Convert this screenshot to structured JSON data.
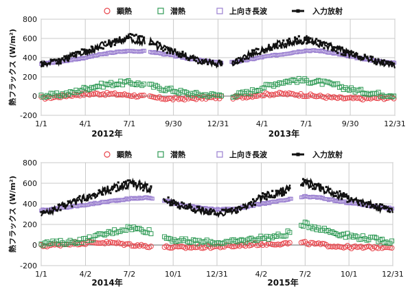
{
  "colors": {
    "sensible": "#e8434a",
    "latent": "#2f9a55",
    "longwave": "#9a7fd0",
    "radiation": "#111111",
    "grid": "#c9c9c9",
    "zero": "#9a9a9a"
  },
  "chart_data": [
    {
      "type": "scatter",
      "ylabel": "熱フラックス (W/m²)",
      "ylim": [
        -200,
        800
      ],
      "yticks": [
        "800",
        "600",
        "400",
        "200",
        "0",
        "-200"
      ],
      "grid": true,
      "legend_position": "top",
      "xlim": [
        0,
        730
      ],
      "x_ticks": [
        {
          "x": 0,
          "label": "1/1"
        },
        {
          "x": 91,
          "label": "4/1"
        },
        {
          "x": 182,
          "label": "7/1"
        },
        {
          "x": 273,
          "label": "9/30"
        },
        {
          "x": 365,
          "label": "12/31"
        },
        {
          "x": 456,
          "label": "4/1"
        },
        {
          "x": 547,
          "label": "7/1"
        },
        {
          "x": 638,
          "label": "9/30"
        },
        {
          "x": 730,
          "label": "12/31"
        }
      ],
      "year_labels": [
        {
          "x": 136,
          "label": "2012年"
        },
        {
          "x": 501,
          "label": "2013年"
        }
      ],
      "gaps": [
        [
          215,
          222
        ],
        [
          375,
          392
        ]
      ],
      "series": [
        {
          "name": "顕熱",
          "key": "sensible",
          "marker": "circle",
          "points": [
            [
              0,
              -20
            ],
            [
              30,
              -10
            ],
            [
              60,
              10
            ],
            [
              91,
              20
            ],
            [
              120,
              25
            ],
            [
              150,
              20
            ],
            [
              182,
              10
            ],
            [
              215,
              -5
            ],
            [
              240,
              -20
            ],
            [
              273,
              -30
            ],
            [
              300,
              -25
            ],
            [
              330,
              -20
            ],
            [
              365,
              -15
            ],
            [
              400,
              -15
            ],
            [
              430,
              0
            ],
            [
              456,
              15
            ],
            [
              490,
              25
            ],
            [
              520,
              20
            ],
            [
              547,
              10
            ],
            [
              580,
              -5
            ],
            [
              610,
              -20
            ],
            [
              638,
              -25
            ],
            [
              670,
              -25
            ],
            [
              700,
              -20
            ],
            [
              730,
              -15
            ]
          ]
        },
        {
          "name": "潜熱",
          "key": "latent",
          "marker": "square",
          "points": [
            [
              0,
              5
            ],
            [
              30,
              10
            ],
            [
              60,
              30
            ],
            [
              91,
              80
            ],
            [
              120,
              110
            ],
            [
              150,
              130
            ],
            [
              182,
              140
            ],
            [
              215,
              120
            ],
            [
              240,
              90
            ],
            [
              273,
              60
            ],
            [
              300,
              30
            ],
            [
              330,
              15
            ],
            [
              365,
              10
            ],
            [
              400,
              10
            ],
            [
              430,
              40
            ],
            [
              456,
              90
            ],
            [
              490,
              140
            ],
            [
              520,
              165
            ],
            [
              547,
              160
            ],
            [
              580,
              140
            ],
            [
              610,
              110
            ],
            [
              638,
              70
            ],
            [
              670,
              40
            ],
            [
              700,
              20
            ],
            [
              730,
              10
            ]
          ]
        },
        {
          "name": "上向き長波",
          "key": "longwave",
          "marker": "square",
          "points": [
            [
              0,
              340
            ],
            [
              30,
              350
            ],
            [
              60,
              375
            ],
            [
              91,
              400
            ],
            [
              120,
              430
            ],
            [
              150,
              455
            ],
            [
              182,
              470
            ],
            [
              215,
              465
            ],
            [
              240,
              450
            ],
            [
              273,
              420
            ],
            [
              300,
              395
            ],
            [
              330,
              370
            ],
            [
              365,
              350
            ],
            [
              400,
              355
            ],
            [
              430,
              380
            ],
            [
              456,
              405
            ],
            [
              490,
              430
            ],
            [
              520,
              455
            ],
            [
              547,
              475
            ],
            [
              580,
              470
            ],
            [
              610,
              440
            ],
            [
              638,
              410
            ],
            [
              670,
              385
            ],
            [
              700,
              360
            ],
            [
              730,
              345
            ]
          ]
        },
        {
          "name": "入力放射",
          "key": "radiation",
          "marker": "line",
          "points": [
            [
              0,
              360
            ],
            [
              30,
              390
            ],
            [
              60,
              440
            ],
            [
              91,
              500
            ],
            [
              120,
              560
            ],
            [
              150,
              610
            ],
            [
              182,
              650
            ],
            [
              215,
              620
            ],
            [
              240,
              570
            ],
            [
              273,
              500
            ],
            [
              300,
              450
            ],
            [
              330,
              400
            ],
            [
              365,
              370
            ],
            [
              400,
              380
            ],
            [
              430,
              470
            ],
            [
              456,
              520
            ],
            [
              490,
              580
            ],
            [
              520,
              610
            ],
            [
              547,
              640
            ],
            [
              580,
              580
            ],
            [
              610,
              530
            ],
            [
              638,
              480
            ],
            [
              670,
              430
            ],
            [
              700,
              380
            ],
            [
              730,
              350
            ]
          ]
        }
      ]
    },
    {
      "type": "scatter",
      "ylabel": "熱フラックス (W/m²)",
      "ylim": [
        -200,
        800
      ],
      "yticks": [
        "800",
        "600",
        "400",
        "200",
        "0",
        "-200"
      ],
      "grid": true,
      "legend_position": "top",
      "xlim": [
        0,
        730
      ],
      "x_ticks": [
        {
          "x": 0,
          "label": "1/1"
        },
        {
          "x": 92,
          "label": "4/2"
        },
        {
          "x": 183,
          "label": "7/2"
        },
        {
          "x": 274,
          "label": "10/1"
        },
        {
          "x": 365,
          "label": "12/31"
        },
        {
          "x": 457,
          "label": "4/2"
        },
        {
          "x": 548,
          "label": "7/2"
        },
        {
          "x": 639,
          "label": "10/1"
        },
        {
          "x": 730,
          "label": "12/31"
        }
      ],
      "year_labels": [
        {
          "x": 137,
          "label": "2014年"
        },
        {
          "x": 502,
          "label": "2015年"
        }
      ],
      "gaps": [
        [
          232,
          252
        ],
        [
          520,
          538
        ]
      ],
      "series": [
        {
          "name": "顕熱",
          "key": "sensible",
          "marker": "circle",
          "points": [
            [
              0,
              -10
            ],
            [
              30,
              0
            ],
            [
              60,
              15
            ],
            [
              92,
              20
            ],
            [
              120,
              25
            ],
            [
              150,
              20
            ],
            [
              183,
              5
            ],
            [
              220,
              -10
            ],
            [
              260,
              -20
            ],
            [
              290,
              -25
            ],
            [
              330,
              -20
            ],
            [
              365,
              -15
            ],
            [
              400,
              -10
            ],
            [
              430,
              5
            ],
            [
              457,
              10
            ],
            [
              500,
              15
            ],
            [
              548,
              20
            ],
            [
              580,
              5
            ],
            [
              610,
              -10
            ],
            [
              639,
              -20
            ],
            [
              670,
              -25
            ],
            [
              700,
              -20
            ],
            [
              730,
              -15
            ]
          ]
        },
        {
          "name": "潜熱",
          "key": "latent",
          "marker": "square",
          "points": [
            [
              0,
              15
            ],
            [
              30,
              20
            ],
            [
              60,
              30
            ],
            [
              92,
              50
            ],
            [
              120,
              90
            ],
            [
              150,
              130
            ],
            [
              183,
              170
            ],
            [
              220,
              140
            ],
            [
              260,
              70
            ],
            [
              290,
              40
            ],
            [
              330,
              30
            ],
            [
              365,
              25
            ],
            [
              400,
              30
            ],
            [
              430,
              50
            ],
            [
              457,
              70
            ],
            [
              500,
              90
            ],
            [
              548,
              200
            ],
            [
              580,
              160
            ],
            [
              610,
              120
            ],
            [
              639,
              90
            ],
            [
              670,
              70
            ],
            [
              700,
              50
            ],
            [
              730,
              30
            ]
          ]
        },
        {
          "name": "上向き長波",
          "key": "longwave",
          "marker": "square",
          "points": [
            [
              0,
              340
            ],
            [
              30,
              350
            ],
            [
              60,
              370
            ],
            [
              92,
              390
            ],
            [
              120,
              410
            ],
            [
              150,
              430
            ],
            [
              183,
              450
            ],
            [
              220,
              460
            ],
            [
              260,
              430
            ],
            [
              290,
              390
            ],
            [
              330,
              360
            ],
            [
              365,
              345
            ],
            [
              400,
              350
            ],
            [
              430,
              375
            ],
            [
              457,
              400
            ],
            [
              500,
              430
            ],
            [
              548,
              470
            ],
            [
              580,
              460
            ],
            [
              610,
              430
            ],
            [
              639,
              410
            ],
            [
              670,
              390
            ],
            [
              700,
              370
            ],
            [
              730,
              355
            ]
          ]
        },
        {
          "name": "入力放射",
          "key": "radiation",
          "marker": "line",
          "points": [
            [
              0,
              340
            ],
            [
              30,
              380
            ],
            [
              60,
              440
            ],
            [
              92,
              500
            ],
            [
              120,
              550
            ],
            [
              150,
              600
            ],
            [
              183,
              640
            ],
            [
              220,
              600
            ],
            [
              260,
              470
            ],
            [
              290,
              420
            ],
            [
              330,
              370
            ],
            [
              365,
              340
            ],
            [
              400,
              360
            ],
            [
              430,
              420
            ],
            [
              457,
              500
            ],
            [
              500,
              560
            ],
            [
              548,
              650
            ],
            [
              580,
              600
            ],
            [
              610,
              540
            ],
            [
              639,
              490
            ],
            [
              670,
              440
            ],
            [
              700,
              400
            ],
            [
              730,
              370
            ]
          ]
        }
      ]
    }
  ]
}
